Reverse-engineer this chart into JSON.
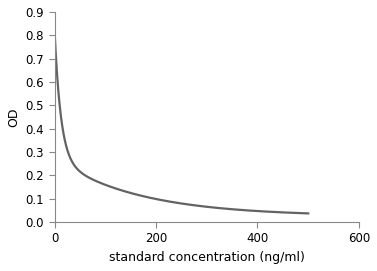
{
  "xlabel": "standard concentration (ng/ml)",
  "ylabel": "OD",
  "xlim": [
    0,
    600
  ],
  "ylim": [
    0,
    0.9
  ],
  "xticks": [
    0,
    200,
    400,
    600
  ],
  "yticks": [
    0.0,
    0.1,
    0.2,
    0.3,
    0.4,
    0.5,
    0.6,
    0.7,
    0.8,
    0.9
  ],
  "line_color": "#636363",
  "line_width": 1.6,
  "background_color": "#ffffff",
  "curve_y_max": 0.82,
  "curve_y_min": 0.025,
  "curve_A": 0.795,
  "curve_k": 0.012,
  "curve_x50": 8,
  "curve_n": 0.72,
  "xlabel_fontsize": 9,
  "ylabel_fontsize": 9,
  "tick_fontsize": 8.5
}
